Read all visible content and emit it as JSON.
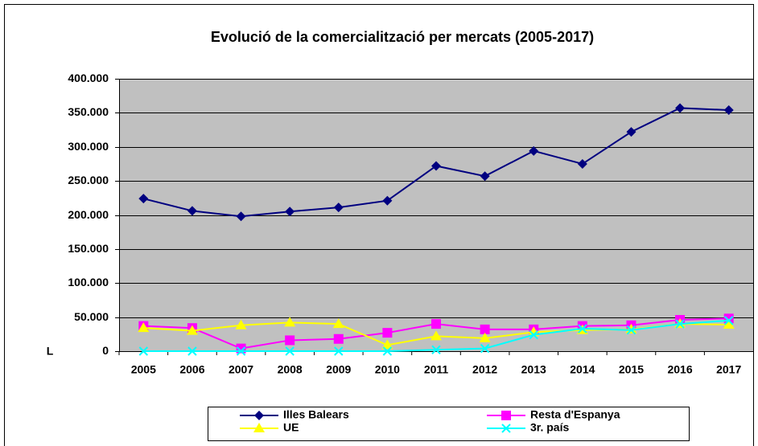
{
  "chart_data": {
    "type": "line",
    "title": "Evolució de la comercialització per mercats (2005-2017)",
    "annotation": "L",
    "categories": [
      "2005",
      "2006",
      "2007",
      "2008",
      "2009",
      "2010",
      "2011",
      "2012",
      "2013",
      "2014",
      "2015",
      "2016",
      "2017"
    ],
    "series": [
      {
        "name": "Illes Balears",
        "color": "#000080",
        "marker": "diamond",
        "values": [
          224000,
          206000,
          198000,
          205000,
          211000,
          221000,
          272000,
          257000,
          294000,
          275000,
          322000,
          357000,
          354000
        ]
      },
      {
        "name": "Resta d'Espanya",
        "color": "#ff00ff",
        "marker": "square",
        "values": [
          37000,
          34000,
          4000,
          16000,
          18000,
          27000,
          40000,
          32000,
          32000,
          37000,
          38000,
          46000,
          48000
        ]
      },
      {
        "name": "UE",
        "color": "#ffff00",
        "marker": "triangle",
        "values": [
          34000,
          30000,
          38000,
          42000,
          40000,
          9000,
          22000,
          19000,
          28000,
          31000,
          32000,
          40000,
          39000
        ]
      },
      {
        "name": "3r. país",
        "color": "#00ffff",
        "marker": "x",
        "values": [
          0,
          0,
          0,
          0,
          0,
          0,
          2000,
          4000,
          24000,
          33000,
          31000,
          40000,
          45000
        ]
      }
    ],
    "ylim": [
      0,
      400000
    ],
    "yticks": [
      0,
      {
        "value": 50000,
        "label": "50.000"
      },
      {
        "value": 100000,
        "label": "100.000"
      },
      {
        "value": 150000,
        "label": "150.000"
      },
      {
        "value": 200000,
        "label": "200.000"
      },
      {
        "value": 250000,
        "label": "250.000"
      },
      {
        "value": 300000,
        "label": "300.000"
      },
      {
        "value": 350000,
        "label": "350.000"
      },
      {
        "value": 400000,
        "label": "400.000"
      }
    ],
    "grid": true,
    "plot_background": "#c0c0c0",
    "legend": "bottom"
  }
}
